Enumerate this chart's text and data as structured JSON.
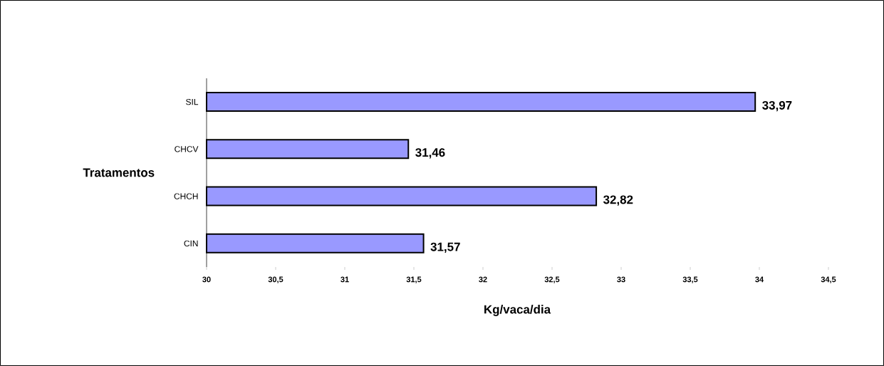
{
  "chart_data": {
    "type": "bar",
    "orientation": "horizontal",
    "xlabel": "Kg/vaca/dia",
    "ylabel": "Tratamentos",
    "categories": [
      "SIL",
      "CHCV",
      "CHCH",
      "CIN"
    ],
    "values": [
      33.97,
      31.46,
      32.82,
      31.57
    ],
    "value_labels": [
      "33,97",
      "31,46",
      "32,82",
      "31,57"
    ],
    "color": "#9999ff",
    "xlim": [
      30,
      34.5
    ],
    "xticks": [
      30,
      {
        "value": 30.5,
        "label": "30,5"
      },
      31,
      {
        "value": 31.5,
        "label": "31,5"
      },
      32,
      {
        "value": 32.5,
        "label": "32,5"
      },
      33,
      {
        "value": 33.5,
        "label": "33,5"
      },
      34,
      {
        "value": 34.5,
        "label": "34,5"
      }
    ]
  }
}
